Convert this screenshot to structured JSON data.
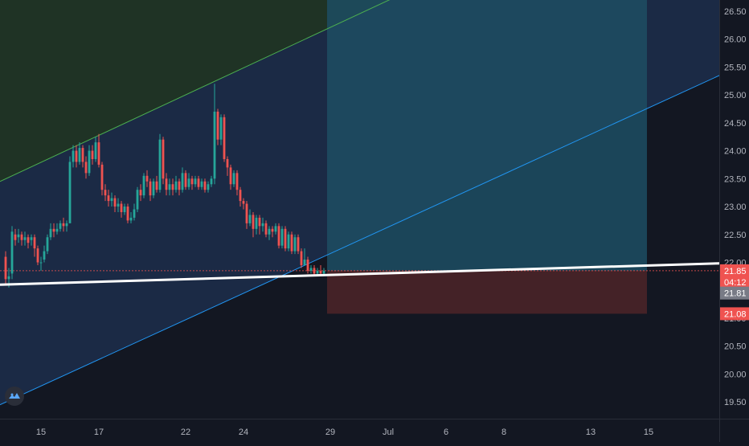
{
  "colors": {
    "background": "#131722",
    "up": "#26a69a",
    "down": "#ef5350",
    "channel_fill": "#1b2a45",
    "upper_zone_fill": "#1f3325",
    "upper_line": "#4caf50",
    "lower_line": "#2196f3",
    "target_zone": "#1d4e63",
    "stop_zone": "#4a2328",
    "trend_line": "#ffffff",
    "axis_text": "#b2b5be",
    "axis_border": "#2a2e39"
  },
  "chart_data": {
    "type": "candlestick",
    "y_axis": {
      "ylim": [
        19.2,
        26.7
      ],
      "ticks": [
        "19.50",
        "20.00",
        "20.50",
        "21.00",
        "21.50",
        "22.00",
        "22.50",
        "23.00",
        "23.50",
        "24.00",
        "24.50",
        "25.00",
        "25.50",
        "26.00",
        "26.50"
      ]
    },
    "x_axis": {
      "ticks": [
        {
          "label": "15",
          "idx": 11
        },
        {
          "label": "17",
          "idx": 29
        },
        {
          "label": "22",
          "idx": 56
        },
        {
          "label": "24",
          "idx": 74
        },
        {
          "label": "29",
          "idx": 101
        },
        {
          "label": "Jul",
          "idx": 119
        },
        {
          "label": "6",
          "idx": 137
        },
        {
          "label": "8",
          "idx": 155
        },
        {
          "label": "13",
          "idx": 182
        },
        {
          "label": "15",
          "idx": 200
        }
      ]
    },
    "price_labels": [
      {
        "label": "21.85",
        "value": 21.85,
        "bg": "#ef5350",
        "color": "#ffffff"
      },
      {
        "label": "04:12",
        "value": 21.65,
        "bg": "#ef5350",
        "color": "#ffffff"
      },
      {
        "label": "21.81",
        "value": 21.45,
        "bg": "#787b86",
        "color": "#ffffff"
      },
      {
        "label": "21.08",
        "value": 21.08,
        "bg": "#ef5350",
        "color": "#ffffff"
      }
    ],
    "last_price": 21.85,
    "candles": [
      [
        22.1,
        21.7,
        22.2,
        21.6
      ],
      [
        21.7,
        21.75,
        21.9,
        21.55
      ],
      [
        21.8,
        22.55,
        22.65,
        21.7
      ],
      [
        22.5,
        22.4,
        22.6,
        22.3
      ],
      [
        22.45,
        22.5,
        22.6,
        22.35
      ],
      [
        22.5,
        22.4,
        22.55,
        22.3
      ],
      [
        22.4,
        22.45,
        22.55,
        22.3
      ],
      [
        22.45,
        22.35,
        22.5,
        22.25
      ],
      [
        22.4,
        22.45,
        22.5,
        22.3
      ],
      [
        22.45,
        22.25,
        22.5,
        22.1
      ],
      [
        22.25,
        22.0,
        22.3,
        21.95
      ],
      [
        22.0,
        22.0,
        22.1,
        21.85
      ],
      [
        22.05,
        22.2,
        22.3,
        22.0
      ],
      [
        22.2,
        22.45,
        22.5,
        22.15
      ],
      [
        22.45,
        22.6,
        22.7,
        22.4
      ],
      [
        22.6,
        22.55,
        22.7,
        22.45
      ],
      [
        22.55,
        22.6,
        22.7,
        22.5
      ],
      [
        22.6,
        22.7,
        22.75,
        22.55
      ],
      [
        22.7,
        22.65,
        22.8,
        22.55
      ],
      [
        22.65,
        22.7,
        22.75,
        22.55
      ],
      [
        22.7,
        23.8,
        23.9,
        22.9
      ],
      [
        23.8,
        24.0,
        24.1,
        23.7
      ],
      [
        24.0,
        23.8,
        24.1,
        23.7
      ],
      [
        23.8,
        24.05,
        24.15,
        23.75
      ],
      [
        24.05,
        23.8,
        24.1,
        23.7
      ],
      [
        23.8,
        23.6,
        23.9,
        23.5
      ],
      [
        23.6,
        24.0,
        24.1,
        23.55
      ],
      [
        24.0,
        23.85,
        24.1,
        23.75
      ],
      [
        23.85,
        24.15,
        24.25,
        23.8
      ],
      [
        24.15,
        23.75,
        24.3,
        23.7
      ],
      [
        23.75,
        23.3,
        23.8,
        23.2
      ],
      [
        23.3,
        23.2,
        23.4,
        23.1
      ],
      [
        23.2,
        23.1,
        23.3,
        23.0
      ],
      [
        23.1,
        23.15,
        23.25,
        23.0
      ],
      [
        23.15,
        23.0,
        23.2,
        22.9
      ],
      [
        23.0,
        23.05,
        23.15,
        22.9
      ],
      [
        23.05,
        22.9,
        23.1,
        22.8
      ],
      [
        22.9,
        23.0,
        23.05,
        22.85
      ],
      [
        23.0,
        22.75,
        23.05,
        22.7
      ],
      [
        22.75,
        22.8,
        22.9,
        22.7
      ],
      [
        22.8,
        22.95,
        23.05,
        22.75
      ],
      [
        22.95,
        23.3,
        23.35,
        22.9
      ],
      [
        23.3,
        23.2,
        23.4,
        23.1
      ],
      [
        23.2,
        23.55,
        23.6,
        23.15
      ],
      [
        23.55,
        23.45,
        23.65,
        23.35
      ],
      [
        23.45,
        23.2,
        23.5,
        23.1
      ],
      [
        23.2,
        23.45,
        23.5,
        23.15
      ],
      [
        23.45,
        23.3,
        23.55,
        23.25
      ],
      [
        23.3,
        24.2,
        24.3,
        23.25
      ],
      [
        24.2,
        23.5,
        24.25,
        23.4
      ],
      [
        23.5,
        23.3,
        23.6,
        23.2
      ],
      [
        23.3,
        23.4,
        23.5,
        23.2
      ],
      [
        23.4,
        23.3,
        23.5,
        23.2
      ],
      [
        23.3,
        23.45,
        23.55,
        23.25
      ],
      [
        23.45,
        23.3,
        23.5,
        23.2
      ],
      [
        23.3,
        23.6,
        23.7,
        23.25
      ],
      [
        23.6,
        23.35,
        23.65,
        23.3
      ],
      [
        23.35,
        23.5,
        23.6,
        23.3
      ],
      [
        23.5,
        23.4,
        23.55,
        23.3
      ],
      [
        23.4,
        23.5,
        23.55,
        23.35
      ],
      [
        23.5,
        23.35,
        23.55,
        23.3
      ],
      [
        23.35,
        23.45,
        23.5,
        23.3
      ],
      [
        23.45,
        23.3,
        23.5,
        23.25
      ],
      [
        23.3,
        23.4,
        23.45,
        23.25
      ],
      [
        23.4,
        23.5,
        23.55,
        23.35
      ],
      [
        23.5,
        24.7,
        25.2,
        23.4
      ],
      [
        24.7,
        24.2,
        24.75,
        24.1
      ],
      [
        24.2,
        24.6,
        24.65,
        24.1
      ],
      [
        24.6,
        23.85,
        24.65,
        23.8
      ],
      [
        23.85,
        23.7,
        23.9,
        23.55
      ],
      [
        23.7,
        23.4,
        23.75,
        23.3
      ],
      [
        23.4,
        23.6,
        23.65,
        23.35
      ],
      [
        23.6,
        23.3,
        23.65,
        23.2
      ],
      [
        23.3,
        23.1,
        23.35,
        23.0
      ],
      [
        23.1,
        23.05,
        23.15,
        22.95
      ],
      [
        23.05,
        22.7,
        23.1,
        22.6
      ],
      [
        22.7,
        22.85,
        22.95,
        22.65
      ],
      [
        22.85,
        22.6,
        22.9,
        22.45
      ],
      [
        22.6,
        22.8,
        22.85,
        22.5
      ],
      [
        22.8,
        22.65,
        22.85,
        22.5
      ],
      [
        22.65,
        22.7,
        22.8,
        22.55
      ],
      [
        22.7,
        22.5,
        22.75,
        22.45
      ],
      [
        22.5,
        22.6,
        22.65,
        22.4
      ],
      [
        22.6,
        22.55,
        22.65,
        22.45
      ],
      [
        22.55,
        22.65,
        22.7,
        22.5
      ],
      [
        22.65,
        22.3,
        22.7,
        22.25
      ],
      [
        22.3,
        22.6,
        22.65,
        22.25
      ],
      [
        22.6,
        22.25,
        22.65,
        22.2
      ],
      [
        22.25,
        22.5,
        22.55,
        22.2
      ],
      [
        22.5,
        22.2,
        22.55,
        22.15
      ],
      [
        22.2,
        22.45,
        22.5,
        22.15
      ],
      [
        22.45,
        22.2,
        22.5,
        22.15
      ],
      [
        22.2,
        21.95,
        22.25,
        21.9
      ],
      [
        21.95,
        22.05,
        22.25,
        21.95
      ],
      [
        22.05,
        21.85,
        22.1,
        21.8
      ],
      [
        21.85,
        21.9,
        21.95,
        21.8
      ],
      [
        21.9,
        21.8,
        21.95,
        21.75
      ],
      [
        21.8,
        21.85,
        21.9,
        21.75
      ],
      [
        21.85,
        21.8,
        21.95,
        21.75
      ],
      [
        21.8,
        21.85,
        21.9,
        21.78
      ]
    ],
    "drawings": {
      "channel_upper": {
        "p1": [
          0,
          23.45
        ],
        "p2": [
          100,
          26.15
        ]
      },
      "channel_lower": {
        "p1": [
          0,
          19.45
        ],
        "p2": [
          100,
          22.1
        ]
      },
      "trend_line": {
        "p1": [
          0,
          21.6
        ],
        "p2": [
          220,
          21.95
        ]
      },
      "position": {
        "from_idx": 100,
        "to_idx": 200,
        "entry": 21.85,
        "target": 26.7,
        "stop": 21.08
      }
    }
  }
}
